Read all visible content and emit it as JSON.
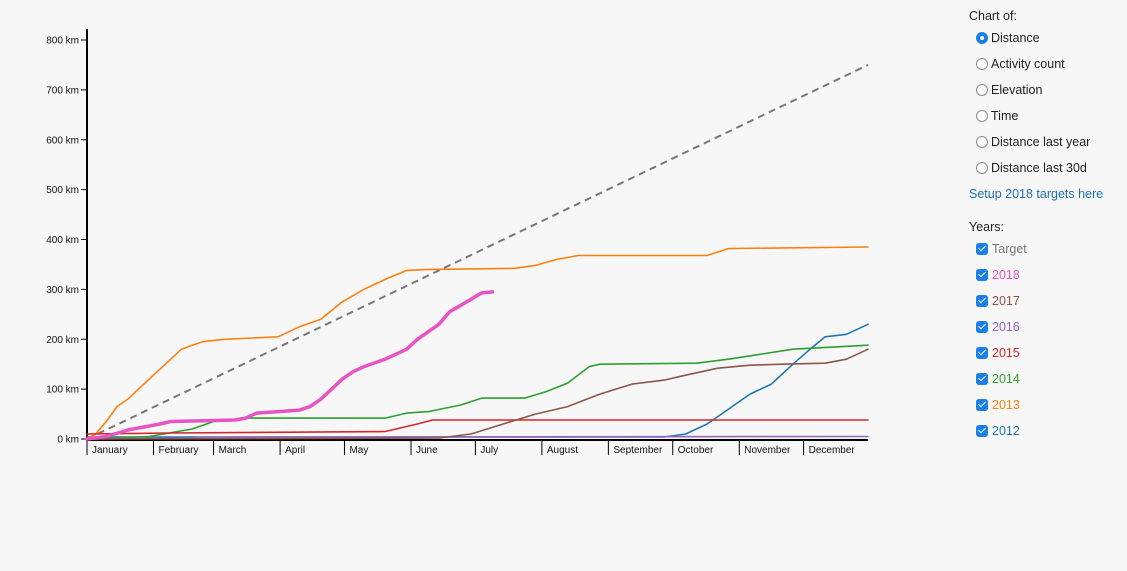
{
  "chart_of": {
    "heading": "Chart of:",
    "options": [
      {
        "label": "Distance",
        "selected": true
      },
      {
        "label": "Activity count",
        "selected": false
      },
      {
        "label": "Elevation",
        "selected": false
      },
      {
        "label": "Time",
        "selected": false
      },
      {
        "label": "Distance last year",
        "selected": false
      },
      {
        "label": "Distance last 30d",
        "selected": false
      }
    ]
  },
  "setup_link": "Setup 2018 targets here",
  "years": {
    "heading": "Years:",
    "items": [
      {
        "label": "Target",
        "color": "#777777",
        "checked": true
      },
      {
        "label": "2018",
        "color": "#e754c4",
        "checked": true
      },
      {
        "label": "2017",
        "color": "#8c564b",
        "checked": true
      },
      {
        "label": "2016",
        "color": "#9467bd",
        "checked": true
      },
      {
        "label": "2015",
        "color": "#d62728",
        "checked": true
      },
      {
        "label": "2014",
        "color": "#2ca02c",
        "checked": true
      },
      {
        "label": "2013",
        "color": "#ff7f0e",
        "checked": true
      },
      {
        "label": "2012",
        "color": "#1f77b4",
        "checked": true
      }
    ]
  },
  "chart_data": {
    "type": "line",
    "ylabel": "",
    "xlabel": "",
    "ylim": [
      0,
      800
    ],
    "xlim": [
      1,
      365
    ],
    "y_ticks": [
      {
        "value": 0,
        "label": "0 km"
      },
      {
        "value": 100,
        "label": "100 km"
      },
      {
        "value": 200,
        "label": "200 km"
      },
      {
        "value": 300,
        "label": "300 km"
      },
      {
        "value": 400,
        "label": "400 km"
      },
      {
        "value": 500,
        "label": "500 km"
      },
      {
        "value": 600,
        "label": "600 km"
      },
      {
        "value": 700,
        "label": "700 km"
      },
      {
        "value": 800,
        "label": "800 km"
      }
    ],
    "x_ticks": [
      {
        "day": 1,
        "label": "January"
      },
      {
        "day": 32,
        "label": "February"
      },
      {
        "day": 60,
        "label": "March"
      },
      {
        "day": 91,
        "label": "April"
      },
      {
        "day": 121,
        "label": "May"
      },
      {
        "day": 152,
        "label": "June"
      },
      {
        "day": 182,
        "label": "July"
      },
      {
        "day": 213,
        "label": "August"
      },
      {
        "day": 244,
        "label": "September"
      },
      {
        "day": 274,
        "label": "October"
      },
      {
        "day": 305,
        "label": "November"
      },
      {
        "day": 335,
        "label": "December"
      }
    ],
    "grid": false,
    "legend": "right",
    "series": [
      {
        "name": "Target",
        "color": "#777777",
        "dashed": true,
        "width": 2,
        "points": [
          [
            1,
            0
          ],
          [
            365,
            750
          ]
        ]
      },
      {
        "name": "2012",
        "color": "#1f77b4",
        "width": 1.6,
        "points": [
          [
            1,
            4
          ],
          [
            270,
            4
          ],
          [
            280,
            10
          ],
          [
            290,
            30
          ],
          [
            300,
            60
          ],
          [
            310,
            90
          ],
          [
            320,
            110
          ],
          [
            330,
            150
          ],
          [
            338,
            180
          ],
          [
            345,
            205
          ],
          [
            355,
            210
          ],
          [
            365,
            230
          ]
        ]
      },
      {
        "name": "2013",
        "color": "#ff7f0e",
        "width": 1.6,
        "points": [
          [
            1,
            0
          ],
          [
            5,
            10
          ],
          [
            10,
            35
          ],
          [
            15,
            65
          ],
          [
            20,
            80
          ],
          [
            25,
            100
          ],
          [
            30,
            120
          ],
          [
            35,
            140
          ],
          [
            40,
            160
          ],
          [
            45,
            180
          ],
          [
            50,
            188
          ],
          [
            55,
            195
          ],
          [
            65,
            200
          ],
          [
            90,
            205
          ],
          [
            100,
            225
          ],
          [
            110,
            240
          ],
          [
            120,
            275
          ],
          [
            130,
            300
          ],
          [
            140,
            320
          ],
          [
            150,
            338
          ],
          [
            160,
            340
          ],
          [
            200,
            342
          ],
          [
            210,
            348
          ],
          [
            220,
            360
          ],
          [
            230,
            368
          ],
          [
            290,
            368
          ],
          [
            300,
            382
          ],
          [
            365,
            385
          ]
        ]
      },
      {
        "name": "2014",
        "color": "#2ca02c",
        "width": 1.6,
        "points": [
          [
            1,
            0
          ],
          [
            30,
            5
          ],
          [
            50,
            20
          ],
          [
            60,
            35
          ],
          [
            75,
            42
          ],
          [
            140,
            42
          ],
          [
            150,
            52
          ],
          [
            160,
            55
          ],
          [
            175,
            68
          ],
          [
            185,
            82
          ],
          [
            205,
            82
          ],
          [
            215,
            95
          ],
          [
            225,
            112
          ],
          [
            235,
            145
          ],
          [
            240,
            150
          ],
          [
            285,
            152
          ],
          [
            300,
            160
          ],
          [
            315,
            170
          ],
          [
            330,
            180
          ],
          [
            365,
            188
          ]
        ]
      },
      {
        "name": "2015",
        "color": "#d62728",
        "width": 1.6,
        "points": [
          [
            1,
            10
          ],
          [
            40,
            12
          ],
          [
            140,
            15
          ],
          [
            155,
            30
          ],
          [
            162,
            38
          ],
          [
            365,
            38
          ]
        ]
      },
      {
        "name": "2016",
        "color": "#9467bd",
        "width": 1.6,
        "points": [
          [
            1,
            0
          ],
          [
            50,
            2
          ],
          [
            55,
            4
          ],
          [
            365,
            5
          ]
        ]
      },
      {
        "name": "2017",
        "color": "#8c564b",
        "width": 1.6,
        "points": [
          [
            1,
            0
          ],
          [
            165,
            2
          ],
          [
            180,
            10
          ],
          [
            195,
            30
          ],
          [
            210,
            50
          ],
          [
            225,
            65
          ],
          [
            240,
            90
          ],
          [
            255,
            110
          ],
          [
            270,
            118
          ],
          [
            280,
            128
          ],
          [
            295,
            142
          ],
          [
            310,
            148
          ],
          [
            325,
            150
          ],
          [
            345,
            152
          ],
          [
            355,
            160
          ],
          [
            365,
            180
          ]
        ]
      },
      {
        "name": "2018",
        "color": "#e754c4",
        "width": 3.5,
        "points": [
          [
            1,
            0
          ],
          [
            10,
            5
          ],
          [
            20,
            18
          ],
          [
            25,
            22
          ],
          [
            35,
            30
          ],
          [
            40,
            35
          ],
          [
            70,
            38
          ],
          [
            75,
            42
          ],
          [
            80,
            52
          ],
          [
            90,
            55
          ],
          [
            100,
            58
          ],
          [
            105,
            65
          ],
          [
            110,
            80
          ],
          [
            115,
            100
          ],
          [
            120,
            120
          ],
          [
            125,
            135
          ],
          [
            130,
            145
          ],
          [
            140,
            160
          ],
          [
            150,
            180
          ],
          [
            155,
            200
          ],
          [
            165,
            230
          ],
          [
            170,
            255
          ],
          [
            178,
            275
          ],
          [
            185,
            293
          ],
          [
            190,
            295
          ]
        ]
      }
    ]
  }
}
